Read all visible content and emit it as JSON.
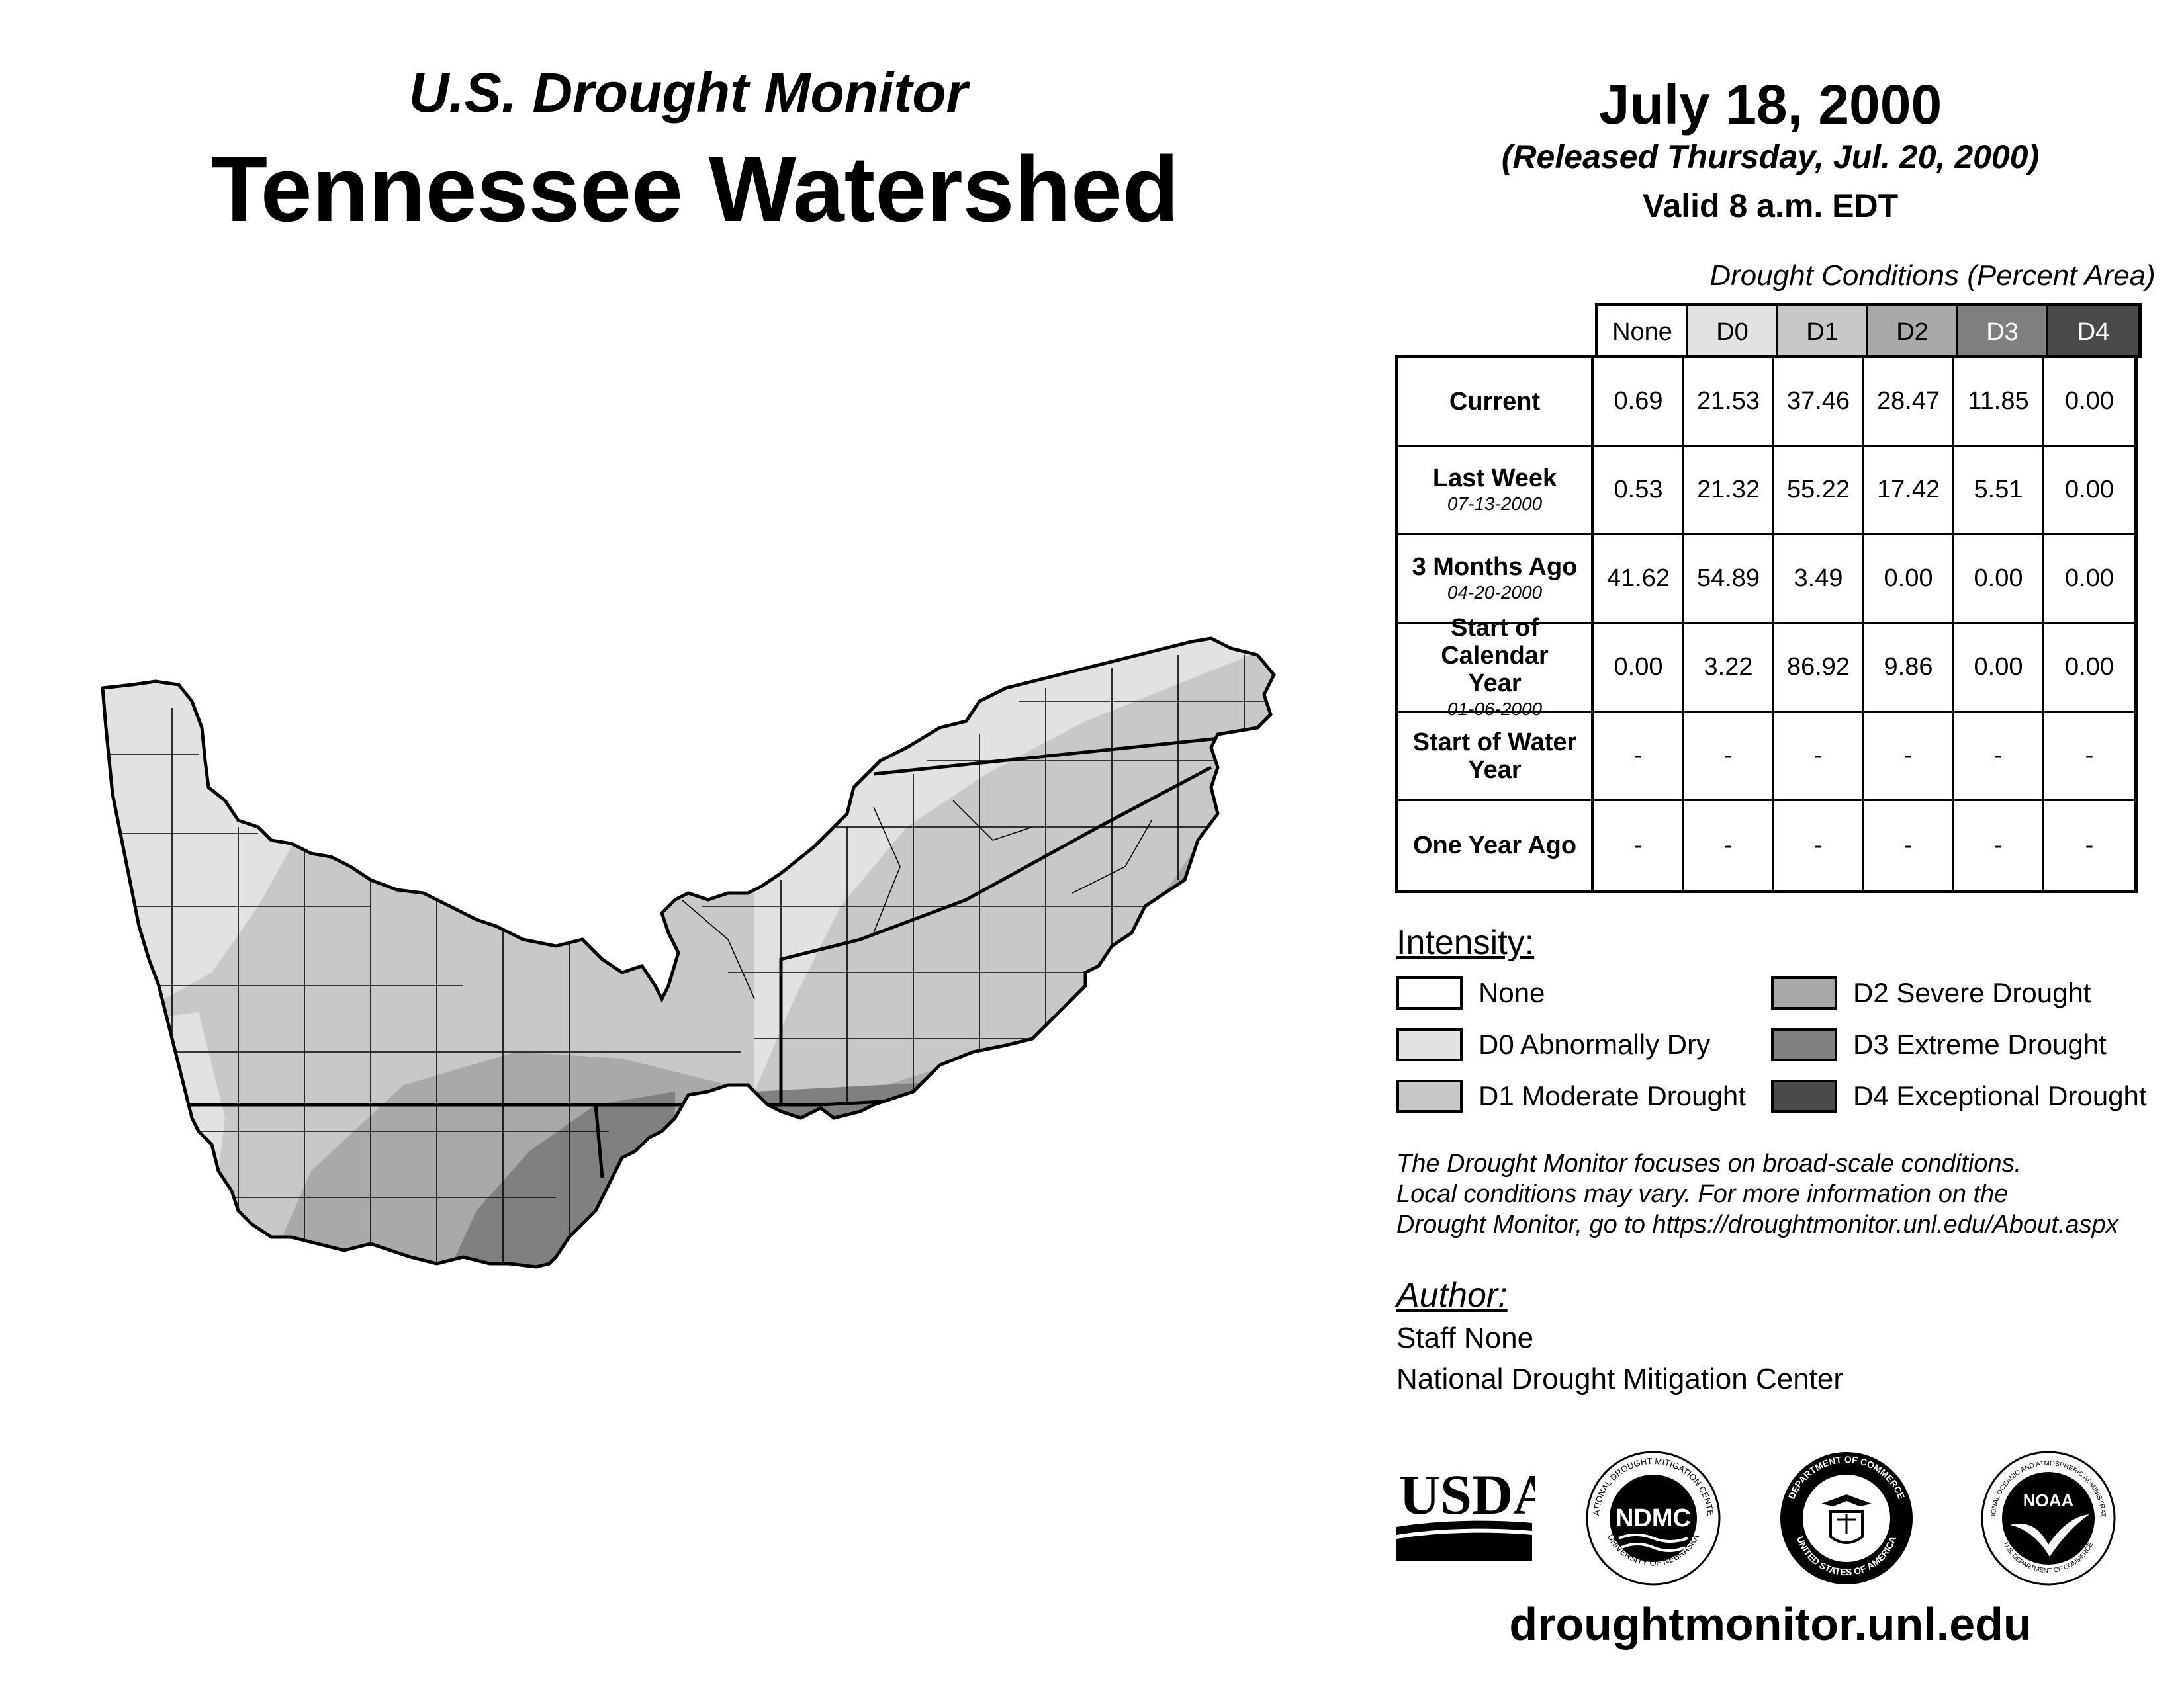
{
  "header": {
    "subtitle": "U.S. Drought Monitor",
    "title": "Tennessee Watershed",
    "date": "July 18, 2000",
    "released": "(Released Thursday, Jul. 20, 2000)",
    "valid": "Valid 8 a.m. EDT"
  },
  "table": {
    "title": "Drought Conditions (Percent Area)",
    "columns": [
      "None",
      "D0",
      "D1",
      "D2",
      "D3",
      "D4"
    ],
    "column_colors": [
      "#ffffff",
      "#e2e2e2",
      "#c8c8c8",
      "#a9a9a9",
      "#808080",
      "#4a4a4a"
    ],
    "rows": [
      {
        "label": "Current",
        "date": "",
        "values": [
          "0.69",
          "21.53",
          "37.46",
          "28.47",
          "11.85",
          "0.00"
        ]
      },
      {
        "label": "Last Week",
        "date": "07-13-2000",
        "values": [
          "0.53",
          "21.32",
          "55.22",
          "17.42",
          "5.51",
          "0.00"
        ]
      },
      {
        "label": "3 Months Ago",
        "date": "04-20-2000",
        "values": [
          "41.62",
          "54.89",
          "3.49",
          "0.00",
          "0.00",
          "0.00"
        ]
      },
      {
        "label": "Start of Calendar Year",
        "date": "01-06-2000",
        "values": [
          "0.00",
          "3.22",
          "86.92",
          "9.86",
          "0.00",
          "0.00"
        ]
      },
      {
        "label": "Start of Water Year",
        "date": "",
        "values": [
          "-",
          "-",
          "-",
          "-",
          "-",
          "-"
        ]
      },
      {
        "label": "One Year Ago",
        "date": "",
        "values": [
          "-",
          "-",
          "-",
          "-",
          "-",
          "-"
        ]
      }
    ]
  },
  "legend": {
    "title": "Intensity:",
    "items": [
      {
        "label": "None",
        "color": "#ffffff"
      },
      {
        "label": "D0 Abnormally Dry",
        "color": "#e2e2e2"
      },
      {
        "label": "D1 Moderate Drought",
        "color": "#c8c8c8"
      },
      {
        "label": "D2 Severe Drought",
        "color": "#a9a9a9"
      },
      {
        "label": "D3 Extreme Drought",
        "color": "#808080"
      },
      {
        "label": "D4 Exceptional Drought",
        "color": "#4a4a4a"
      }
    ]
  },
  "disclaimer": [
    "The Drought Monitor focuses on broad-scale conditions.",
    "Local conditions may vary. For more information on the",
    "Drought Monitor, go to https://droughtmonitor.unl.edu/About.aspx"
  ],
  "author": {
    "label": "Author:",
    "name": "Staff None",
    "org": "National Drought Mitigation Center"
  },
  "logos": {
    "usda": "USDA",
    "ndmc": "NDMC",
    "ndmc_ring_top": "NATIONAL DROUGHT MITIGATION CENTER",
    "ndmc_ring_bottom": "UNIVERSITY OF NEBRASKA",
    "doc_ring_top": "DEPARTMENT OF COMMERCE",
    "doc_ring_bottom": "UNITED STATES OF AMERICA",
    "noaa": "NOAA",
    "noaa_ring_top": "NATIONAL OCEANIC AND ATMOSPHERIC ADMINISTRATION",
    "noaa_ring_bottom": "U.S. DEPARTMENT OF COMMERCE"
  },
  "footer": {
    "url": "droughtmonitor.unl.edu"
  }
}
